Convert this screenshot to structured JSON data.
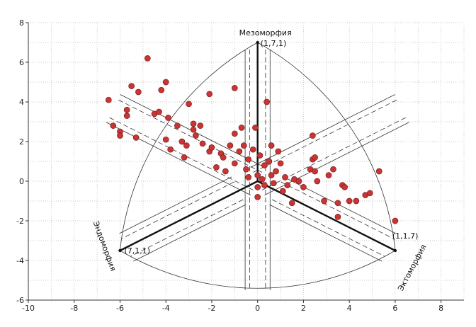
{
  "chart_data": {
    "type": "scatter",
    "title": "",
    "xlabel": "",
    "ylabel": "",
    "xlim": [
      -10,
      9
    ],
    "ylim": [
      -6,
      8
    ],
    "xticks": [
      -10,
      -8,
      -6,
      -4,
      -2,
      0,
      2,
      4,
      6,
      8
    ],
    "yticks": [
      -6,
      -4,
      -2,
      0,
      2,
      4,
      6,
      8
    ],
    "tick_labels_x": [
      "-10",
      "-8",
      "-6",
      "-4",
      "-2",
      "0",
      "2",
      "4",
      "6",
      "8"
    ],
    "tick_labels_y": [
      "-6",
      "-4",
      "-2",
      "0",
      "2",
      "4",
      "6",
      "8"
    ],
    "grid": true,
    "marker_color": "#cc3333",
    "vertices": [
      {
        "name": "Мезоморфия",
        "label": "(1,7,1)",
        "x": 0,
        "y": 7
      },
      {
        "name": "Эндоморфия",
        "label": "(7,1,1)",
        "x": -6,
        "y": -3.5
      },
      {
        "name": "Эктоморфия",
        "label": "(1,1,7)",
        "x": 6,
        "y": -3.5
      }
    ],
    "series": [
      {
        "points": [
          [
            -6.5,
            4.1
          ],
          [
            -6.3,
            2.8
          ],
          [
            -6.0,
            2.5
          ],
          [
            -6.0,
            2.3
          ],
          [
            -5.7,
            3.6
          ],
          [
            -5.7,
            3.3
          ],
          [
            -5.5,
            4.8
          ],
          [
            -5.3,
            2.2
          ],
          [
            -5.2,
            4.5
          ],
          [
            -4.8,
            6.2
          ],
          [
            -4.5,
            3.4
          ],
          [
            -4.3,
            3.5
          ],
          [
            -4.2,
            4.6
          ],
          [
            -4.0,
            5.0
          ],
          [
            -4.0,
            2.1
          ],
          [
            -3.9,
            3.2
          ],
          [
            -3.8,
            1.6
          ],
          [
            -3.5,
            2.8
          ],
          [
            -3.3,
            2.0
          ],
          [
            -3.2,
            1.2
          ],
          [
            -3.1,
            1.8
          ],
          [
            -3.0,
            3.9
          ],
          [
            -2.8,
            2.9
          ],
          [
            -2.8,
            2.6
          ],
          [
            -2.7,
            2.3
          ],
          [
            -2.5,
            2.8
          ],
          [
            -2.4,
            1.9
          ],
          [
            -2.1,
            1.5
          ],
          [
            -2.1,
            4.4
          ],
          [
            -2.0,
            1.7
          ],
          [
            -1.8,
            0.7
          ],
          [
            -1.6,
            1.4
          ],
          [
            -1.5,
            1.2
          ],
          [
            -1.4,
            0.5
          ],
          [
            -1.2,
            1.8
          ],
          [
            -1.0,
            2.4
          ],
          [
            -1.0,
            0.9
          ],
          [
            -1.0,
            4.7
          ],
          [
            -0.8,
            1.5
          ],
          [
            -0.7,
            2.7
          ],
          [
            -0.6,
            1.8
          ],
          [
            -0.5,
            0.6
          ],
          [
            -0.4,
            1.1
          ],
          [
            -0.4,
            0.2
          ],
          [
            -0.2,
            1.6
          ],
          [
            0.0,
            0.3
          ],
          [
            0.0,
            -0.3
          ],
          [
            0.0,
            -0.8
          ],
          [
            -0.1,
            2.7
          ],
          [
            0.1,
            1.3
          ],
          [
            0.2,
            0.1
          ],
          [
            0.3,
            0.8
          ],
          [
            0.3,
            -0.2
          ],
          [
            0.4,
            4.0
          ],
          [
            0.5,
            1.0
          ],
          [
            0.6,
            0.3
          ],
          [
            0.6,
            1.8
          ],
          [
            0.7,
            -0.1
          ],
          [
            0.8,
            0.5
          ],
          [
            0.9,
            1.5
          ],
          [
            1.0,
            0.9
          ],
          [
            1.1,
            -0.5
          ],
          [
            1.2,
            0.2
          ],
          [
            1.3,
            -0.2
          ],
          [
            1.5,
            -1.1
          ],
          [
            1.6,
            0.1
          ],
          [
            1.8,
            0.0
          ],
          [
            2.0,
            -0.3
          ],
          [
            2.3,
            0.6
          ],
          [
            2.4,
            2.3
          ],
          [
            2.4,
            1.1
          ],
          [
            2.5,
            1.2
          ],
          [
            2.5,
            0.5
          ],
          [
            2.6,
            0.0
          ],
          [
            2.9,
            -1.0
          ],
          [
            3.1,
            0.3
          ],
          [
            3.3,
            0.6
          ],
          [
            3.5,
            -1.8
          ],
          [
            3.5,
            -1.1
          ],
          [
            3.7,
            -0.2
          ],
          [
            3.8,
            -0.3
          ],
          [
            4.0,
            -1.0
          ],
          [
            4.3,
            -1.0
          ],
          [
            4.7,
            -0.7
          ],
          [
            4.9,
            -0.6
          ],
          [
            5.3,
            0.5
          ],
          [
            6.0,
            -2.0
          ]
        ]
      }
    ]
  }
}
